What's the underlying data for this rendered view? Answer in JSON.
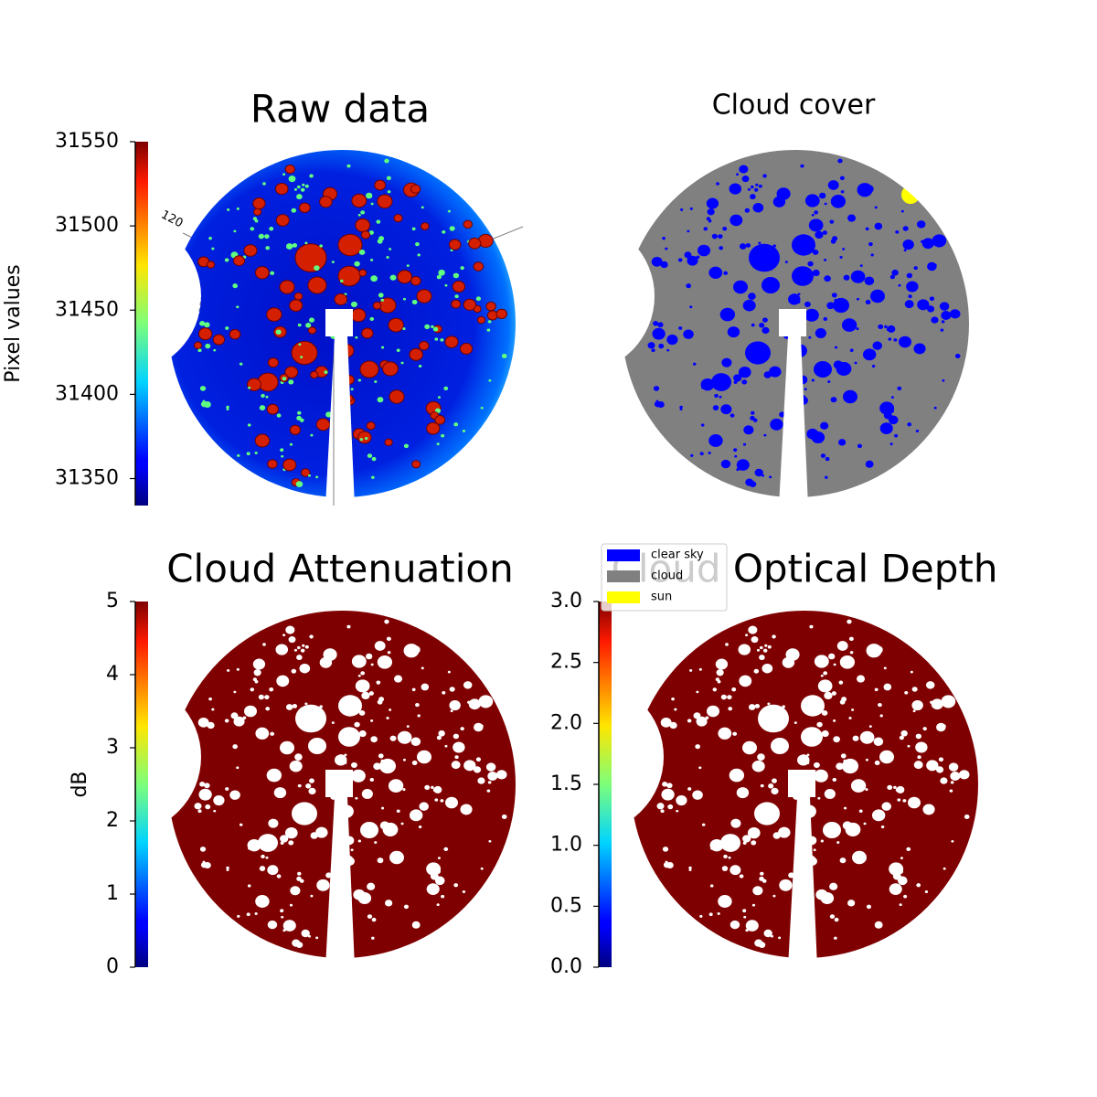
{
  "chart_data": [
    {
      "type": "image",
      "title": "Raw data",
      "colormap": "jet",
      "colorbar_label": "Pixel values",
      "ylim": [
        31334,
        31550
      ],
      "yticks": [
        31350,
        31400,
        31450,
        31500,
        31550
      ],
      "annotations": [
        "120"
      ]
    },
    {
      "type": "image",
      "title": "Cloud cover",
      "categories": [
        "clear sky",
        "cloud",
        "sun"
      ],
      "colors": [
        "#0000ff",
        "#808080",
        "#ffff00"
      ]
    },
    {
      "type": "image",
      "title": "Cloud Attenuation",
      "colormap": "jet",
      "colorbar_label": "dB",
      "ylim": [
        0,
        5
      ],
      "yticks": [
        0,
        1,
        2,
        3,
        4,
        5
      ]
    },
    {
      "type": "image",
      "title": "Cloud Optical Depth",
      "colormap": "jet",
      "ylim": [
        0,
        3
      ],
      "yticks": [
        {
          "value": 0,
          "label": "0.0"
        },
        {
          "value": 0.5,
          "label": "0.5"
        },
        {
          "value": 1,
          "label": "1.0"
        },
        {
          "value": 1.5,
          "label": "1.5"
        },
        {
          "value": 2,
          "label": "2.0"
        },
        {
          "value": 2.5,
          "label": "2.5"
        },
        {
          "value": 3,
          "label": "3.0"
        }
      ]
    }
  ]
}
